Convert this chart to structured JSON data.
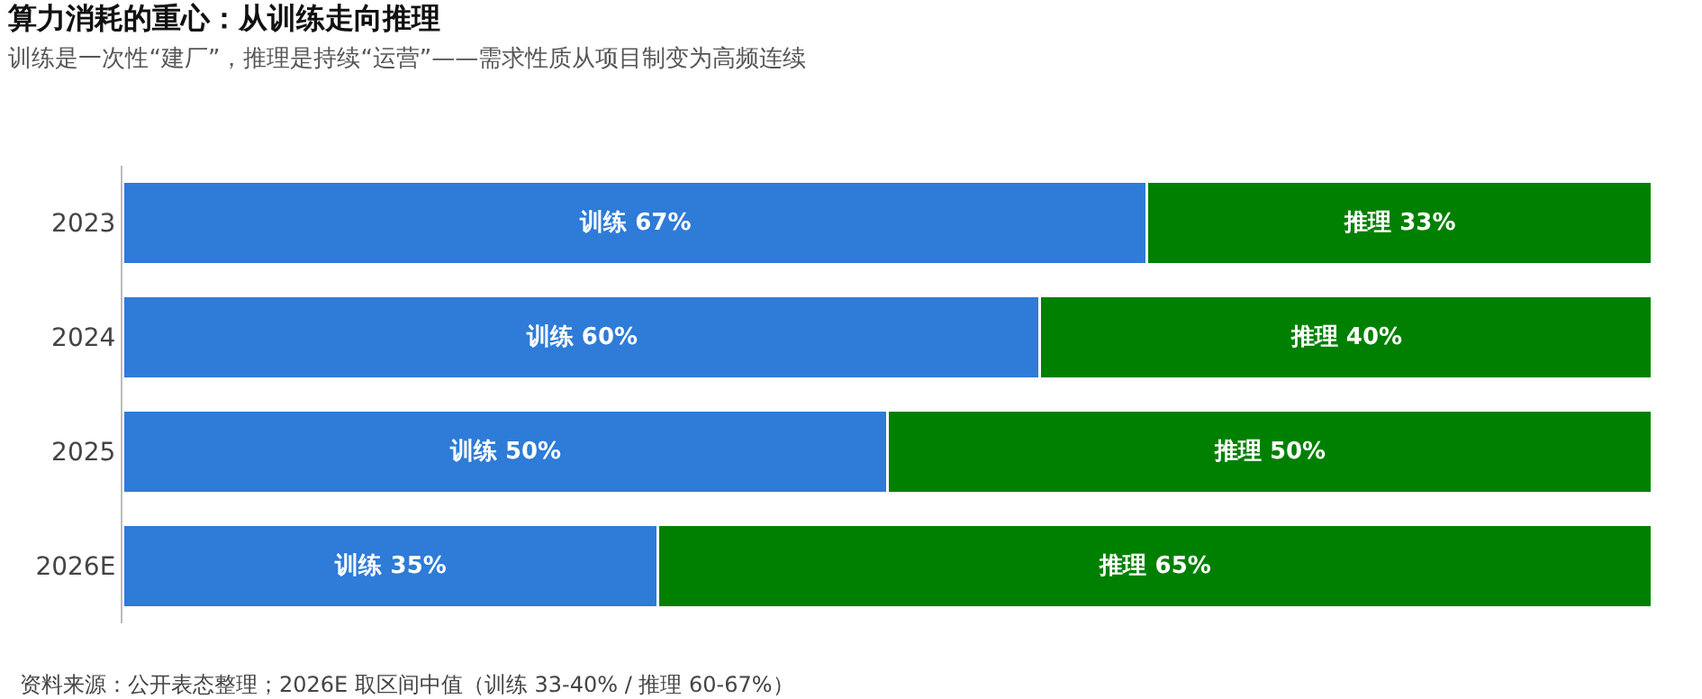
{
  "chart_data": {
    "type": "bar",
    "orientation": "horizontal",
    "stacked": true,
    "title": "算力消耗的重心：从训练走向推理",
    "subtitle": "训练是一次性“建厂”，推理是持续“运营”——需求性质从项目制变为高频连续",
    "categories": [
      "2023",
      "2024",
      "2025",
      "2026E"
    ],
    "series": [
      {
        "color": "#2e7bd8",
        "values": [
          67,
          60,
          50,
          35
        ],
        "value_labels": [
          "训练 67%",
          "训练 60%",
          "训练 50%",
          "训练 35%"
        ]
      },
      {
        "color": "#008000",
        "values": [
          33,
          40,
          50,
          65
        ],
        "value_labels": [
          "推理 33%",
          "推理 40%",
          "推理 50%",
          "推理 65%"
        ]
      }
    ],
    "xlim": [
      0,
      100
    ],
    "tick_labels": "y",
    "legend": false,
    "annotations": [
      "资料来源：公开表态整理；2026E 取区间中值（训练 33-40% / 推理 60-67%）"
    ]
  }
}
